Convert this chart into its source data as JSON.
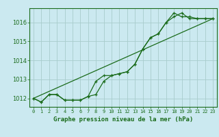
{
  "title": "Graphe pression niveau de la mer (hPa)",
  "bg_color": "#cbe9f0",
  "grid_color": "#a8cccc",
  "line_color": "#1a6b1a",
  "xlim": [
    -0.5,
    23.5
  ],
  "ylim": [
    1011.55,
    1016.75
  ],
  "yticks": [
    1012,
    1013,
    1014,
    1015,
    1016
  ],
  "xticks": [
    0,
    1,
    2,
    3,
    4,
    5,
    6,
    7,
    8,
    9,
    10,
    11,
    12,
    13,
    14,
    15,
    16,
    17,
    18,
    19,
    20,
    21,
    22,
    23
  ],
  "series1_x": [
    0,
    1,
    2,
    3,
    4,
    5,
    6,
    7,
    8,
    9,
    10,
    11,
    12,
    13,
    14,
    15,
    16,
    17,
    18,
    19,
    20,
    21,
    22,
    23
  ],
  "series1_y": [
    1012.0,
    1011.8,
    1012.2,
    1012.2,
    1011.9,
    1011.9,
    1011.9,
    1012.1,
    1012.2,
    1012.9,
    1013.2,
    1013.3,
    1013.4,
    1013.8,
    1014.6,
    1015.2,
    1015.4,
    1016.0,
    1016.3,
    1016.5,
    1016.2,
    1016.2,
    1016.2,
    1016.2
  ],
  "series2_x": [
    0,
    1,
    2,
    3,
    4,
    5,
    6,
    7,
    8,
    9,
    10,
    11,
    12,
    13,
    14,
    15,
    16,
    17,
    18,
    19,
    20,
    21,
    22,
    23
  ],
  "series2_y": [
    1012.0,
    1011.8,
    1012.2,
    1012.2,
    1011.9,
    1011.9,
    1011.9,
    1012.1,
    1012.9,
    1013.2,
    1013.2,
    1013.3,
    1013.4,
    1013.8,
    1014.6,
    1015.2,
    1015.4,
    1016.0,
    1016.5,
    1016.3,
    1016.3,
    1016.2,
    1016.2,
    1016.2
  ],
  "series3_x": [
    0,
    23
  ],
  "series3_y": [
    1012.0,
    1016.2
  ]
}
